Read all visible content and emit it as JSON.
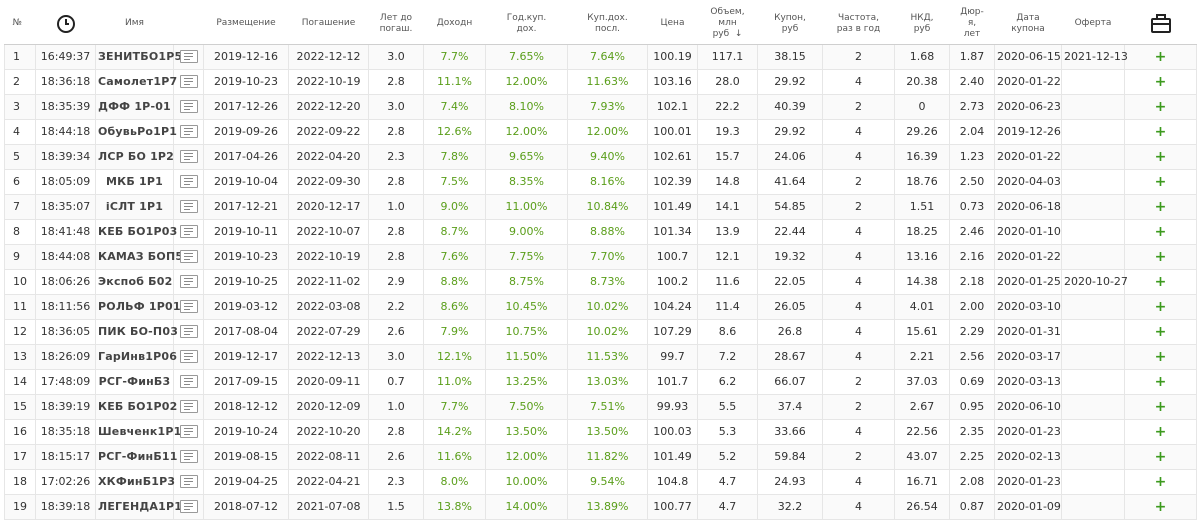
{
  "headers": {
    "num": "№",
    "time_icon": "clock-icon",
    "name": "Имя",
    "placement": "Размещение",
    "maturity": "Погашение",
    "years_to_maturity": [
      "Лет до",
      "погаш."
    ],
    "yield": "Доходн",
    "annual_coupon_yield": [
      "Год.куп.",
      "дох."
    ],
    "coupon_yield_last": [
      "Куп.дох.",
      "посл."
    ],
    "price": "Цена",
    "volume": [
      "Объем,",
      "млн",
      "руб"
    ],
    "volume_sort_arrow": "↓",
    "coupon_rub": [
      "Купон,",
      "руб"
    ],
    "frequency": [
      "Частота,",
      "раз в год"
    ],
    "nkd_rub": [
      "НКД,",
      "руб"
    ],
    "duration": [
      "Дюр-",
      "я,",
      "лет"
    ],
    "coupon_date": [
      "Дата",
      "купона"
    ],
    "offer": "Оферта",
    "portfolio_icon": "briefcase-icon"
  },
  "rows": [
    {
      "n": "1",
      "time": "16:49:37",
      "name": "ЗЕНИТБО1Р5",
      "placement": "2019-12-16",
      "maturity": "2022-12-12",
      "years": "3.0",
      "yield": "7.7%",
      "annual": "7.65%",
      "last": "7.64%",
      "price": "100.19",
      "volume": "117.1",
      "coupon": "38.15",
      "freq": "2",
      "nkd": "1.68",
      "dur": "1.87",
      "cdate": "2020-06-15",
      "offer": "2021-12-13"
    },
    {
      "n": "2",
      "time": "18:36:18",
      "name": "Самолет1Р7",
      "placement": "2019-10-23",
      "maturity": "2022-10-19",
      "years": "2.8",
      "yield": "11.1%",
      "annual": "12.00%",
      "last": "11.63%",
      "price": "103.16",
      "volume": "28.0",
      "coupon": "29.92",
      "freq": "4",
      "nkd": "20.38",
      "dur": "2.40",
      "cdate": "2020-01-22",
      "offer": ""
    },
    {
      "n": "3",
      "time": "18:35:39",
      "name": "ДФФ 1Р-01",
      "placement": "2017-12-26",
      "maturity": "2022-12-20",
      "years": "3.0",
      "yield": "7.4%",
      "annual": "8.10%",
      "last": "7.93%",
      "price": "102.1",
      "volume": "22.2",
      "coupon": "40.39",
      "freq": "2",
      "nkd": "0",
      "dur": "2.73",
      "cdate": "2020-06-23",
      "offer": ""
    },
    {
      "n": "4",
      "time": "18:44:18",
      "name": "ОбувьРо1Р1",
      "placement": "2019-09-26",
      "maturity": "2022-09-22",
      "years": "2.8",
      "yield": "12.6%",
      "annual": "12.00%",
      "last": "12.00%",
      "price": "100.01",
      "volume": "19.3",
      "coupon": "29.92",
      "freq": "4",
      "nkd": "29.26",
      "dur": "2.04",
      "cdate": "2019-12-26",
      "offer": ""
    },
    {
      "n": "5",
      "time": "18:39:34",
      "name": "ЛСР БО 1Р2",
      "placement": "2017-04-26",
      "maturity": "2022-04-20",
      "years": "2.3",
      "yield": "7.8%",
      "annual": "9.65%",
      "last": "9.40%",
      "price": "102.61",
      "volume": "15.7",
      "coupon": "24.06",
      "freq": "4",
      "nkd": "16.39",
      "dur": "1.23",
      "cdate": "2020-01-22",
      "offer": ""
    },
    {
      "n": "6",
      "time": "18:05:09",
      "name": "МКБ 1Р1",
      "placement": "2019-10-04",
      "maturity": "2022-09-30",
      "years": "2.8",
      "yield": "7.5%",
      "annual": "8.35%",
      "last": "8.16%",
      "price": "102.39",
      "volume": "14.8",
      "coupon": "41.64",
      "freq": "2",
      "nkd": "18.76",
      "dur": "2.50",
      "cdate": "2020-04-03",
      "offer": ""
    },
    {
      "n": "7",
      "time": "18:35:07",
      "name": "iСЛТ 1Р1",
      "placement": "2017-12-21",
      "maturity": "2020-12-17",
      "years": "1.0",
      "yield": "9.0%",
      "annual": "11.00%",
      "last": "10.84%",
      "price": "101.49",
      "volume": "14.1",
      "coupon": "54.85",
      "freq": "2",
      "nkd": "1.51",
      "dur": "0.73",
      "cdate": "2020-06-18",
      "offer": ""
    },
    {
      "n": "8",
      "time": "18:41:48",
      "name": "КЕБ БО1Р03",
      "placement": "2019-10-11",
      "maturity": "2022-10-07",
      "years": "2.8",
      "yield": "8.7%",
      "annual": "9.00%",
      "last": "8.88%",
      "price": "101.34",
      "volume": "13.9",
      "coupon": "22.44",
      "freq": "4",
      "nkd": "18.25",
      "dur": "2.46",
      "cdate": "2020-01-10",
      "offer": ""
    },
    {
      "n": "9",
      "time": "18:44:08",
      "name": "КАМАЗ БОП5",
      "placement": "2019-10-23",
      "maturity": "2022-10-19",
      "years": "2.8",
      "yield": "7.6%",
      "annual": "7.75%",
      "last": "7.70%",
      "price": "100.7",
      "volume": "12.1",
      "coupon": "19.32",
      "freq": "4",
      "nkd": "13.16",
      "dur": "2.16",
      "cdate": "2020-01-22",
      "offer": ""
    },
    {
      "n": "10",
      "time": "18:06:26",
      "name": "Экспоб Б02",
      "placement": "2019-10-25",
      "maturity": "2022-11-02",
      "years": "2.9",
      "yield": "8.8%",
      "annual": "8.75%",
      "last": "8.73%",
      "price": "100.2",
      "volume": "11.6",
      "coupon": "22.05",
      "freq": "4",
      "nkd": "14.38",
      "dur": "2.18",
      "cdate": "2020-01-25",
      "offer": "2020-10-27"
    },
    {
      "n": "11",
      "time": "18:11:56",
      "name": "РОЛЬФ 1Р01",
      "placement": "2019-03-12",
      "maturity": "2022-03-08",
      "years": "2.2",
      "yield": "8.6%",
      "annual": "10.45%",
      "last": "10.02%",
      "price": "104.24",
      "volume": "11.4",
      "coupon": "26.05",
      "freq": "4",
      "nkd": "4.01",
      "dur": "2.00",
      "cdate": "2020-03-10",
      "offer": ""
    },
    {
      "n": "12",
      "time": "18:36:05",
      "name": "ПИК БО-П03",
      "placement": "2017-08-04",
      "maturity": "2022-07-29",
      "years": "2.6",
      "yield": "7.9%",
      "annual": "10.75%",
      "last": "10.02%",
      "price": "107.29",
      "volume": "8.6",
      "coupon": "26.8",
      "freq": "4",
      "nkd": "15.61",
      "dur": "2.29",
      "cdate": "2020-01-31",
      "offer": ""
    },
    {
      "n": "13",
      "time": "18:26:09",
      "name": "ГарИнв1Р06",
      "placement": "2019-12-17",
      "maturity": "2022-12-13",
      "years": "3.0",
      "yield": "12.1%",
      "annual": "11.50%",
      "last": "11.53%",
      "price": "99.7",
      "volume": "7.2",
      "coupon": "28.67",
      "freq": "4",
      "nkd": "2.21",
      "dur": "2.56",
      "cdate": "2020-03-17",
      "offer": ""
    },
    {
      "n": "14",
      "time": "17:48:09",
      "name": "РСГ-ФинБ3",
      "placement": "2017-09-15",
      "maturity": "2020-09-11",
      "years": "0.7",
      "yield": "11.0%",
      "annual": "13.25%",
      "last": "13.03%",
      "price": "101.7",
      "volume": "6.2",
      "coupon": "66.07",
      "freq": "2",
      "nkd": "37.03",
      "dur": "0.69",
      "cdate": "2020-03-13",
      "offer": ""
    },
    {
      "n": "15",
      "time": "18:39:19",
      "name": "КЕБ БО1Р02",
      "placement": "2018-12-12",
      "maturity": "2020-12-09",
      "years": "1.0",
      "yield": "7.7%",
      "annual": "7.50%",
      "last": "7.51%",
      "price": "99.93",
      "volume": "5.5",
      "coupon": "37.4",
      "freq": "2",
      "nkd": "2.67",
      "dur": "0.95",
      "cdate": "2020-06-10",
      "offer": ""
    },
    {
      "n": "16",
      "time": "18:35:18",
      "name": "Шевченк1Р1",
      "placement": "2019-10-24",
      "maturity": "2022-10-20",
      "years": "2.8",
      "yield": "14.2%",
      "annual": "13.50%",
      "last": "13.50%",
      "price": "100.03",
      "volume": "5.3",
      "coupon": "33.66",
      "freq": "4",
      "nkd": "22.56",
      "dur": "2.35",
      "cdate": "2020-01-23",
      "offer": ""
    },
    {
      "n": "17",
      "time": "18:15:17",
      "name": "РСГ-ФинБ11",
      "placement": "2019-08-15",
      "maturity": "2022-08-11",
      "years": "2.6",
      "yield": "11.6%",
      "annual": "12.00%",
      "last": "11.82%",
      "price": "101.49",
      "volume": "5.2",
      "coupon": "59.84",
      "freq": "2",
      "nkd": "43.07",
      "dur": "2.25",
      "cdate": "2020-02-13",
      "offer": ""
    },
    {
      "n": "18",
      "time": "17:02:26",
      "name": "ХКФинБ1Р3",
      "placement": "2019-04-25",
      "maturity": "2022-04-21",
      "years": "2.3",
      "yield": "8.0%",
      "annual": "10.00%",
      "last": "9.54%",
      "price": "104.8",
      "volume": "4.7",
      "coupon": "24.93",
      "freq": "4",
      "nkd": "16.71",
      "dur": "2.08",
      "cdate": "2020-01-23",
      "offer": ""
    },
    {
      "n": "19",
      "time": "18:39:18",
      "name": "ЛЕГЕНДА1Р1",
      "placement": "2018-07-12",
      "maturity": "2021-07-08",
      "years": "1.5",
      "yield": "13.8%",
      "annual": "14.00%",
      "last": "13.89%",
      "price": "100.77",
      "volume": "4.7",
      "coupon": "32.2",
      "freq": "4",
      "nkd": "26.54",
      "dur": "0.87",
      "cdate": "2020-01-09",
      "offer": ""
    }
  ],
  "row_action_label": "+",
  "colors": {
    "green_value": "#5a9e1a",
    "plus": "#3c9a1d",
    "row_stripe": "#fafafa",
    "grid": "#e6e6e6"
  }
}
